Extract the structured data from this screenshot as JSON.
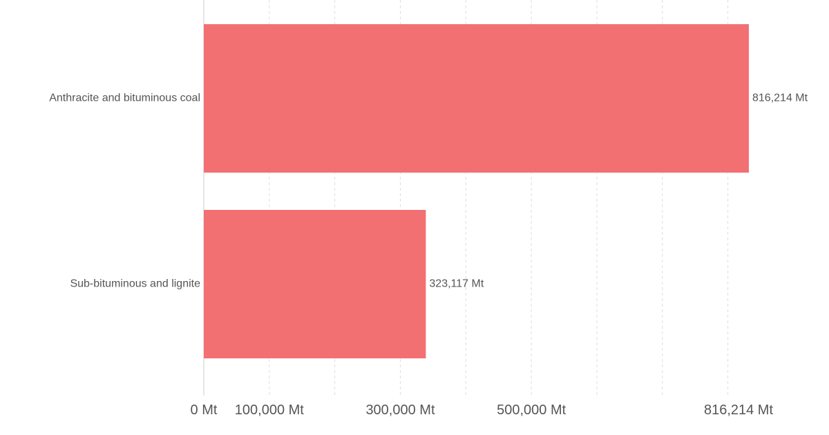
{
  "chart_data": {
    "type": "bar",
    "orientation": "horizontal",
    "categories": [
      "Anthracite and bituminous coal",
      "Sub-bituminous and lignite"
    ],
    "values": [
      816214,
      323117
    ],
    "value_labels": [
      "816,214 Mt",
      "323,117 Mt"
    ],
    "unit": "Mt",
    "xlim": [
      0,
      816214
    ],
    "x_ticks": [
      0,
      100000,
      300000,
      500000,
      816214
    ],
    "x_tick_labels": [
      "0 Mt",
      "100,000 Mt",
      "300,000 Mt",
      "500,000 Mt",
      "816,214 Mt"
    ],
    "gridlines": [
      100000,
      200000,
      300000,
      400000,
      500000,
      600000,
      700000,
      800000
    ],
    "grid": true,
    "legend": "none",
    "bar_color": "#f27072"
  }
}
